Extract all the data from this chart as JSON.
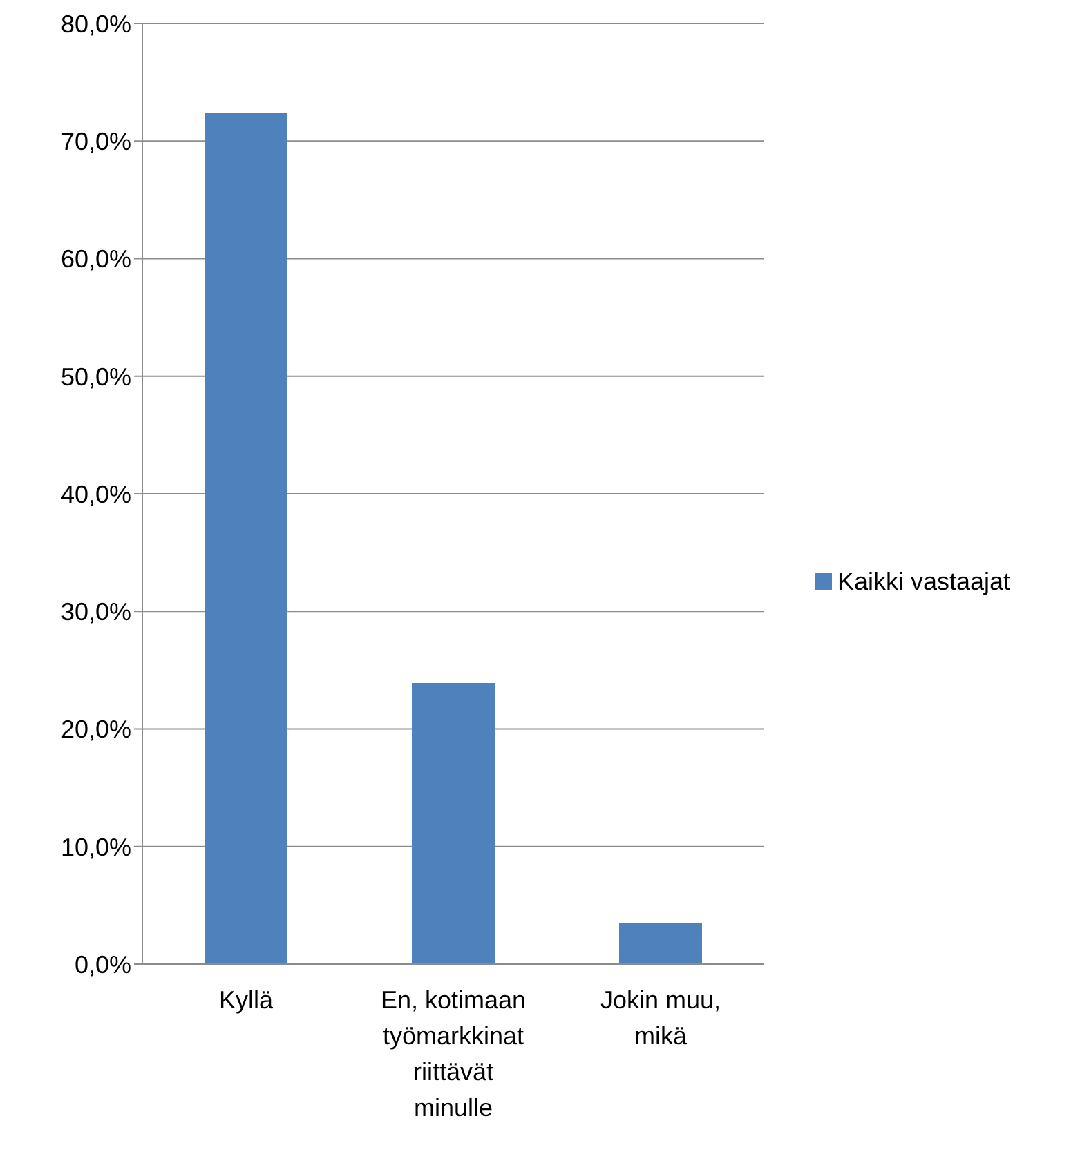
{
  "chart_data": {
    "type": "bar",
    "categories": [
      "Kyllä",
      "En, kotimaan työmarkkinat riittävät minulle",
      "Jokin muu, mikä"
    ],
    "series": [
      {
        "name": "Kaikki vastaajat",
        "color": "#4f81bd",
        "values": [
          72.4,
          23.9,
          3.5
        ]
      }
    ],
    "ylim": [
      0,
      80
    ],
    "yticks": [
      {
        "value": 0,
        "label": "0,0%"
      },
      {
        "value": 10,
        "label": "10,0%"
      },
      {
        "value": 20,
        "label": "20,0%"
      },
      {
        "value": 30,
        "label": "30,0%"
      },
      {
        "value": 40,
        "label": "40,0%"
      },
      {
        "value": 50,
        "label": "50,0%"
      },
      {
        "value": 60,
        "label": "60,0%"
      },
      {
        "value": 70,
        "label": "70,0%"
      },
      {
        "value": 80,
        "label": "80,0%"
      }
    ],
    "grid": "y",
    "legend": "right"
  }
}
